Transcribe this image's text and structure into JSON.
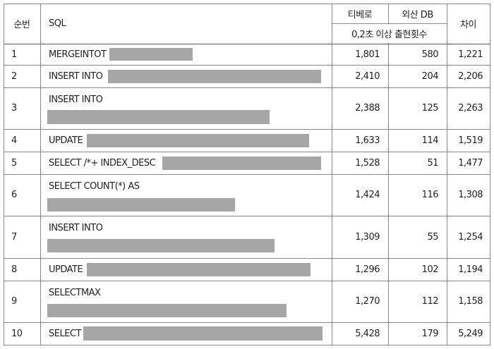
{
  "table": {
    "header": {
      "no": "순번",
      "sql": "SQL",
      "tibero": "티베로",
      "foreign": "외산 DB",
      "subheader": "0,2초 이상  출현횟수",
      "diff": "차이"
    },
    "rows": [
      {
        "no": "1",
        "sql": "MERGEINTOT",
        "tibero": "1,801",
        "foreign": "580",
        "diff": "1,221"
      },
      {
        "no": "2",
        "sql": "INSERT INTO",
        "tibero": "2,410",
        "foreign": "204",
        "diff": "2,206"
      },
      {
        "no": "3",
        "sql": "INSERT INTO",
        "tibero": "2,388",
        "foreign": "125",
        "diff": "2,263"
      },
      {
        "no": "4",
        "sql": "UPDATE",
        "tibero": "1,633",
        "foreign": "114",
        "diff": "1,519"
      },
      {
        "no": "5",
        "sql": "SELECT /*+ INDEX_DESC",
        "tibero": "1,528",
        "foreign": "51",
        "diff": "1,477"
      },
      {
        "no": "6",
        "sql": "SELECT COUNT(*) AS",
        "tibero": "1,424",
        "foreign": "116",
        "diff": "1,308"
      },
      {
        "no": "7",
        "sql": "INSERT INTO",
        "tibero": "1,309",
        "foreign": "55",
        "diff": "1,254"
      },
      {
        "no": "8",
        "sql": "UPDATE",
        "tibero": "1,296",
        "foreign": "102",
        "diff": "1,194"
      },
      {
        "no": "9",
        "sql": "SELECTMAX",
        "tibero": "1,270",
        "foreign": "112",
        "diff": "1,158"
      },
      {
        "no": "10",
        "sql": "SELECT",
        "tibero": "5,428",
        "foreign": "179",
        "diff": "5,249"
      }
    ]
  }
}
